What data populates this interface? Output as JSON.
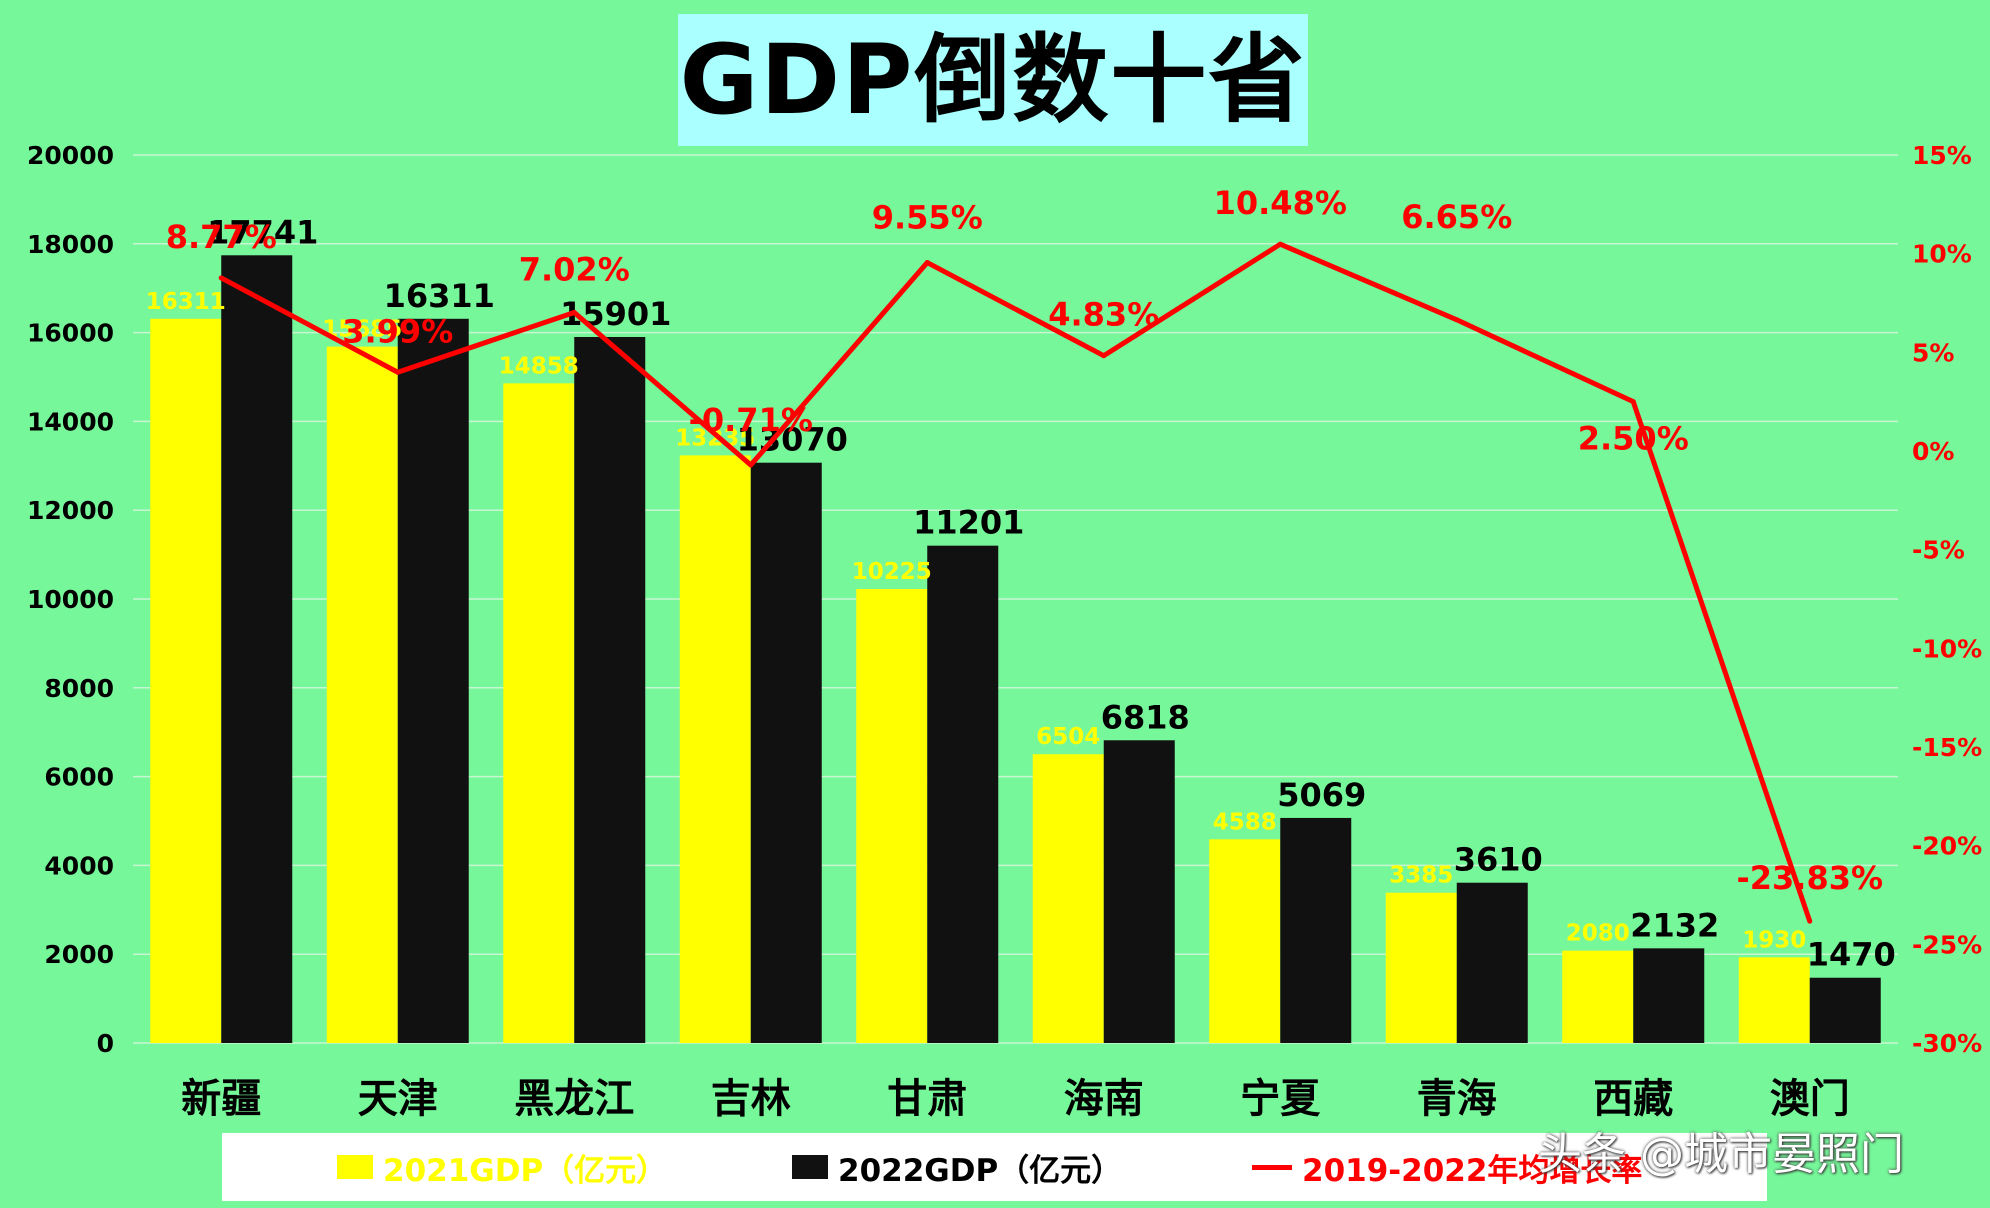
{
  "title": "GDP倒数十省",
  "watermark": "头条 @城市晏照门",
  "legend": {
    "series_2021": "2021GDP（亿元）",
    "series_2022": "2022GDP（亿元）",
    "series_rate": "2019-2022年均增长率"
  },
  "colors": {
    "bar_2021": "#ffff00",
    "bar_2022": "#111111",
    "rate_line": "#ff0000",
    "background": "#76f79a",
    "title_bg": "#aaffff"
  },
  "chart_data": {
    "type": "bar",
    "categories": [
      "新疆",
      "天津",
      "黑龙江",
      "吉林",
      "甘肃",
      "海南",
      "宁夏",
      "青海",
      "西藏",
      "澳门"
    ],
    "series": [
      {
        "name": "2021GDP（亿元）",
        "type": "bar",
        "values": [
          16311,
          15685,
          14858,
          13235,
          10225,
          6504,
          4588,
          3385,
          2080,
          1930
        ],
        "labels": [
          "16311",
          "15685",
          "14858",
          "13235",
          "10225",
          "6504",
          "4588",
          "3385",
          "2080",
          "1930"
        ]
      },
      {
        "name": "2022GDP（亿元）",
        "type": "bar",
        "values": [
          17741,
          16311,
          15901,
          13070,
          11201,
          6818,
          5069,
          3610,
          2132,
          1470
        ],
        "labels": [
          "17741",
          "16311",
          "15901",
          "13070",
          "11201",
          "6818",
          "5069",
          "3610",
          "2132",
          "1470"
        ]
      },
      {
        "name": "2019-2022年均增长率",
        "type": "line",
        "axis": "right",
        "values": [
          8.77,
          3.99,
          7.02,
          -0.71,
          9.55,
          4.83,
          10.48,
          6.65,
          2.5,
          -23.83
        ],
        "labels": [
          "8.77%",
          "3.99%",
          "7.02%",
          "-0.71%",
          "9.55%",
          "4.83%",
          "10.48%",
          "6.65%",
          "2.50%",
          "-23.83%"
        ]
      }
    ],
    "y_left": {
      "ylim": [
        0,
        20000
      ],
      "ticks": [
        "0",
        "2000",
        "4000",
        "6000",
        "8000",
        "10000",
        "12000",
        "14000",
        "16000",
        "18000",
        "20000"
      ]
    },
    "y_right": {
      "ylim": [
        -30,
        15
      ],
      "ticks": [
        "-30%",
        "-25%",
        "-20%",
        "-15%",
        "-10%",
        "-5%",
        "0%",
        "5%",
        "10%",
        "15%"
      ]
    },
    "grid": true,
    "legend_position": "bottom"
  }
}
